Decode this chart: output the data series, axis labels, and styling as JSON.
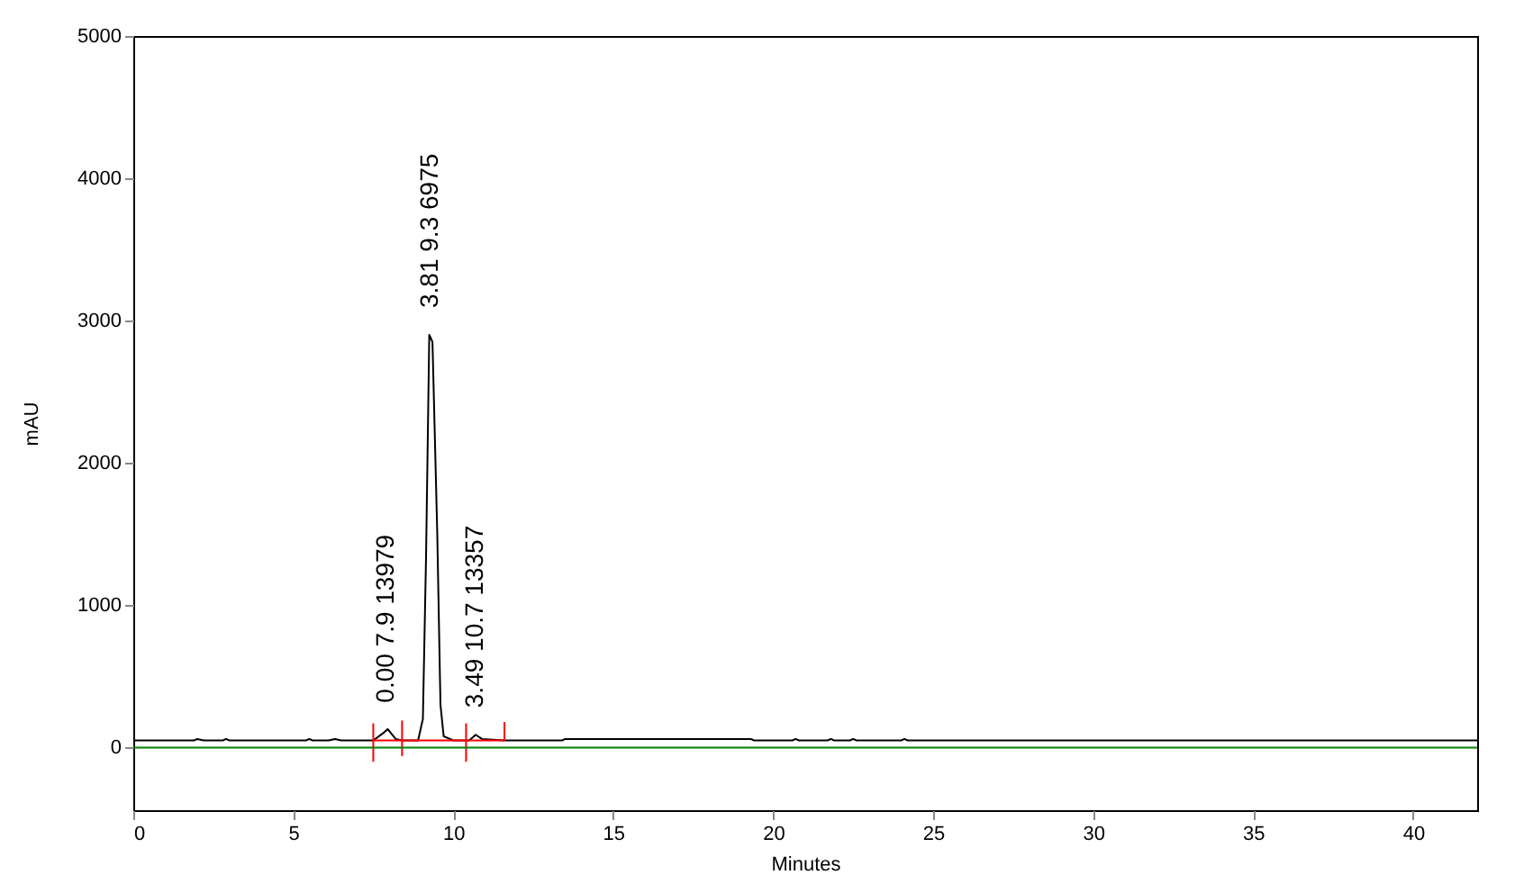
{
  "chart_data": {
    "type": "line",
    "xlabel": "Minutes",
    "ylabel": "mAU",
    "xlim": [
      0,
      42
    ],
    "xticks": [
      0,
      5,
      10,
      15,
      20,
      25,
      30,
      35,
      40
    ],
    "ylim": [
      -440,
      5000
    ],
    "yticks": [
      0,
      1000,
      2000,
      3000,
      4000,
      5000
    ],
    "grid": false,
    "series": [
      {
        "color": "#000000",
        "x": [
          0,
          1.9,
          2.0,
          2.2,
          2.8,
          2.9,
          3.0,
          5.4,
          5.5,
          5.6,
          6.1,
          6.3,
          6.5,
          7.5,
          7.8,
          7.95,
          8.2,
          8.4,
          8.9,
          9.05,
          9.15,
          9.25,
          9.35,
          9.5,
          9.6,
          9.7,
          10.0,
          10.5,
          10.7,
          10.9,
          11.6,
          13.4,
          13.5,
          19.3,
          19.4,
          20.6,
          20.7,
          20.8,
          21.7,
          21.8,
          21.9,
          22.4,
          22.5,
          22.6,
          24.0,
          24.1,
          24.2,
          42
        ],
        "values": [
          50,
          50,
          60,
          50,
          50,
          60,
          50,
          50,
          60,
          50,
          50,
          60,
          50,
          50,
          100,
          130,
          60,
          50,
          50,
          200,
          1350,
          2900,
          2850,
          1500,
          300,
          80,
          50,
          50,
          90,
          60,
          50,
          50,
          60,
          60,
          50,
          50,
          60,
          50,
          50,
          60,
          50,
          50,
          60,
          50,
          50,
          60,
          50,
          50
        ]
      },
      {
        "color": "#ff0000",
        "x": [
          7.5,
          11.6
        ],
        "values": [
          50,
          50
        ]
      },
      {
        "color": "#ff0000",
        "x": [
          7.5,
          7.5
        ],
        "values": [
          -100,
          170
        ]
      },
      {
        "color": "#ff0000",
        "x": [
          8.4,
          8.4
        ],
        "values": [
          -60,
          190
        ]
      },
      {
        "color": "#ff0000",
        "x": [
          10.4,
          10.4
        ],
        "values": [
          -100,
          170
        ]
      },
      {
        "color": "#ff0000",
        "x": [
          11.6,
          11.6
        ],
        "values": [
          50,
          180
        ]
      }
    ],
    "ref_lines": [
      {
        "axis": "y",
        "value": 0,
        "color": "#008000"
      }
    ],
    "annotations": [
      {
        "text": "0.00  7.9  13979",
        "x": 7.9,
        "y": 125
      },
      {
        "text": "3.81  9.3  6975",
        "x": 9.3,
        "y": 2900
      },
      {
        "text": "3.49  10.7  13357",
        "x": 10.7,
        "y": 90
      }
    ]
  }
}
